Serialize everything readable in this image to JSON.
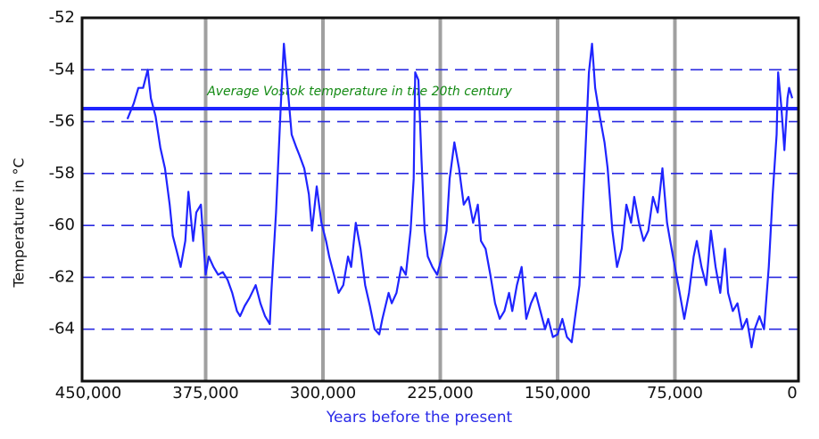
{
  "chart_data": {
    "type": "line",
    "x_label": "Years before the present",
    "y_label": "Temperature in °C",
    "annotation": "Average Vostok temperature in the 20th century",
    "reference_line": -55.5,
    "xlim": [
      454000,
      -4000
    ],
    "ylim": [
      -66,
      -52
    ],
    "xticks": [
      {
        "value": 450000,
        "label": "450,000"
      },
      {
        "value": 375000,
        "label": "375,000"
      },
      {
        "value": 300000,
        "label": "300,000"
      },
      {
        "value": 225000,
        "label": "225,000"
      },
      {
        "value": 150000,
        "label": "150,000"
      },
      {
        "value": 75000,
        "label": "75,000"
      },
      0
    ],
    "yticks": [
      -64,
      -62,
      -60,
      -58,
      -56,
      -54,
      -52
    ],
    "grid": true,
    "series": [
      {
        "color": "#1f24ff",
        "x": [
          425000,
          421000,
          418000,
          415000,
          412000,
          410000,
          407000,
          404000,
          401000,
          398000,
          396000,
          393000,
          391000,
          388000,
          386000,
          383000,
          381000,
          378000,
          375000,
          373000,
          370000,
          367000,
          364000,
          361000,
          358000,
          355000,
          353000,
          350000,
          347000,
          343000,
          340000,
          337000,
          334000,
          333000,
          330000,
          327000,
          325000,
          323000,
          320000,
          317000,
          315000,
          312000,
          309000,
          307000,
          304000,
          301000,
          298000,
          296000,
          293000,
          290000,
          287000,
          284000,
          282000,
          279000,
          276000,
          273000,
          270000,
          267000,
          264000,
          262000,
          258000,
          256000,
          253000,
          250000,
          247000,
          244000,
          242000,
          241000,
          239000,
          237000,
          235000,
          233000,
          230000,
          227000,
          224000,
          221000,
          219000,
          216000,
          213000,
          210000,
          207000,
          204000,
          201000,
          199000,
          196000,
          193000,
          190000,
          187000,
          184000,
          181000,
          179000,
          176000,
          173000,
          170000,
          167000,
          164000,
          161000,
          158000,
          156000,
          153000,
          150000,
          147000,
          144000,
          141000,
          139000,
          136000,
          133000,
          130000,
          128000,
          126000,
          123000,
          120000,
          118000,
          115000,
          112000,
          109000,
          106000,
          103000,
          101000,
          98000,
          95000,
          92000,
          89000,
          86000,
          83000,
          80000,
          78000,
          75000,
          72000,
          69000,
          66000,
          63000,
          61000,
          58000,
          55000,
          52000,
          49000,
          46000,
          43000,
          41000,
          38000,
          35000,
          32000,
          29000,
          26000,
          24000,
          21000,
          18000,
          15000,
          12500,
          10000,
          9000,
          7000,
          5000,
          3000,
          2000,
          0
        ],
        "values": [
          -55.9,
          -55.3,
          -54.7,
          -54.7,
          -54.0,
          -55.1,
          -55.8,
          -57.0,
          -57.8,
          -59.2,
          -60.4,
          -61.1,
          -61.6,
          -60.6,
          -58.7,
          -60.6,
          -59.5,
          -59.2,
          -61.9,
          -61.2,
          -61.6,
          -61.9,
          -61.8,
          -62.1,
          -62.6,
          -63.3,
          -63.5,
          -63.1,
          -62.8,
          -62.3,
          -63.0,
          -63.5,
          -63.8,
          -62.6,
          -59.5,
          -55.4,
          -53.0,
          -54.4,
          -56.5,
          -57.0,
          -57.3,
          -57.8,
          -58.8,
          -60.2,
          -58.5,
          -59.9,
          -60.6,
          -61.2,
          -61.9,
          -62.6,
          -62.3,
          -61.2,
          -61.6,
          -59.9,
          -60.9,
          -62.3,
          -63.1,
          -64.0,
          -64.2,
          -63.6,
          -62.6,
          -63.0,
          -62.6,
          -61.6,
          -61.9,
          -60.2,
          -58.2,
          -54.1,
          -54.4,
          -57.5,
          -60.2,
          -61.2,
          -61.6,
          -61.9,
          -61.2,
          -60.2,
          -58.2,
          -56.8,
          -57.8,
          -59.2,
          -58.9,
          -59.9,
          -59.2,
          -60.6,
          -60.9,
          -61.9,
          -63.0,
          -63.6,
          -63.3,
          -62.6,
          -63.3,
          -62.3,
          -61.6,
          -63.6,
          -63.0,
          -62.6,
          -63.3,
          -64.0,
          -63.6,
          -64.3,
          -64.2,
          -63.6,
          -64.3,
          -64.5,
          -63.6,
          -62.3,
          -58.2,
          -54.1,
          -53.0,
          -54.7,
          -55.8,
          -56.8,
          -57.8,
          -60.2,
          -61.6,
          -60.9,
          -59.2,
          -59.9,
          -58.9,
          -59.9,
          -60.6,
          -60.2,
          -58.9,
          -59.5,
          -57.8,
          -59.9,
          -60.6,
          -61.6,
          -62.6,
          -63.6,
          -62.6,
          -61.2,
          -60.6,
          -61.6,
          -62.3,
          -60.2,
          -61.6,
          -62.6,
          -60.9,
          -62.6,
          -63.3,
          -63.0,
          -64.0,
          -63.6,
          -64.7,
          -64.0,
          -63.5,
          -64.0,
          -61.6,
          -58.8,
          -56.5,
          -54.1,
          -55.4,
          -57.1,
          -55.1,
          -54.7,
          -55.1
        ]
      }
    ]
  }
}
